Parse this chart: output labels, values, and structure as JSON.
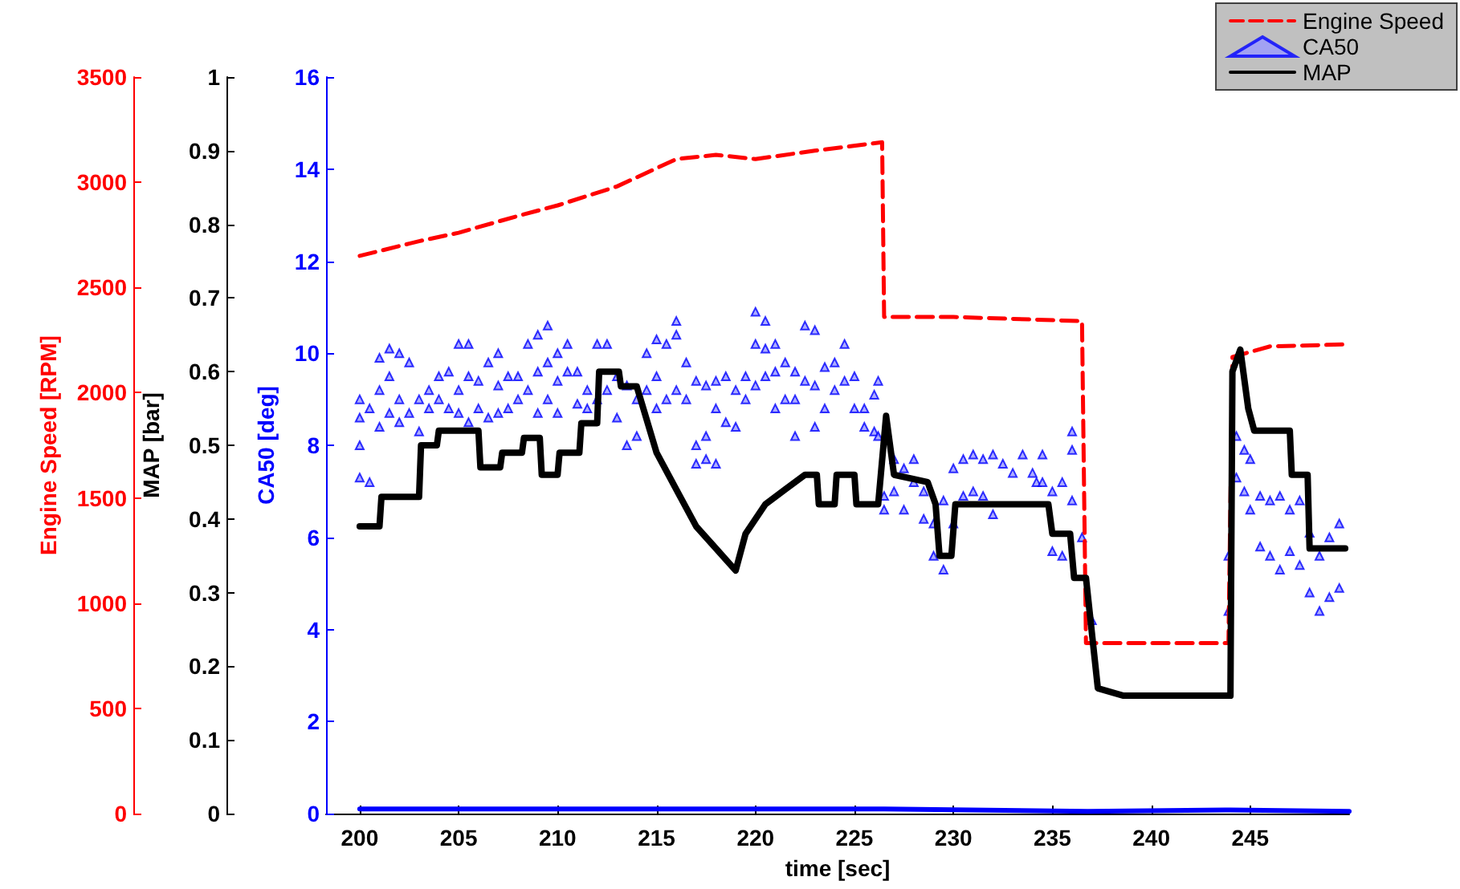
{
  "chart_data": {
    "type": "line",
    "xlabel": "time [sec]",
    "ylabel": "CA50 [deg]",
    "y2label": "MAP [bar]",
    "y3label": "Engine Speed [RPM]",
    "xlim": [
      198.3,
      250
    ],
    "xticks": [
      200,
      205,
      210,
      215,
      220,
      225,
      230,
      235,
      240,
      245
    ],
    "ylim": [
      0,
      16
    ],
    "yticks": [
      0,
      2,
      4,
      6,
      8,
      10,
      12,
      14,
      16
    ],
    "y2lim": [
      0,
      1
    ],
    "y2ticks": [
      0,
      0.1,
      0.2,
      0.3,
      0.4,
      0.5,
      0.6,
      0.7,
      0.8,
      0.9,
      1
    ],
    "y3lim": [
      0,
      3500
    ],
    "y3ticks": [
      0,
      500,
      1000,
      1500,
      2000,
      2500,
      3000,
      3500
    ],
    "legend": "top right",
    "grid": false,
    "series": [
      {
        "name": "Engine Speed",
        "axis": "y3",
        "color": "#ff0000",
        "line_style": "dashed",
        "marker": "none",
        "x": [
          200,
          203,
          205,
          208,
          210,
          213,
          216,
          218,
          220,
          223,
          226.4,
          226.5,
          230,
          236.5,
          236.7,
          240,
          243.9,
          244.1,
          246,
          250
        ],
        "values": [
          2650,
          2720,
          2760,
          2840,
          2890,
          2980,
          3110,
          3130,
          3110,
          3150,
          3190,
          2360,
          2360,
          2340,
          810,
          810,
          810,
          2170,
          2220,
          2230
        ]
      },
      {
        "name": "CA50",
        "type": "scatter",
        "axis": "y",
        "color": "#0000ff",
        "marker": "triangle",
        "x": [
          200,
          200,
          200,
          200,
          200.5,
          200.5,
          201,
          201,
          201,
          201.5,
          201.5,
          201.5,
          202,
          202,
          202,
          202.5,
          202.5,
          203,
          203,
          203.5,
          203.5,
          204,
          204,
          204.5,
          204.5,
          205,
          205,
          205,
          205.5,
          205.5,
          205.5,
          206,
          206,
          206.5,
          206.5,
          207,
          207,
          207,
          207.5,
          207.5,
          208,
          208,
          208.5,
          208.5,
          209,
          209,
          209,
          209.5,
          209.5,
          209.5,
          210,
          210,
          210,
          210.5,
          210.5,
          211,
          211,
          211.5,
          211.5,
          212,
          212,
          212.5,
          212.5,
          213,
          213,
          213.5,
          213.5,
          214,
          214,
          214.5,
          214.5,
          215,
          215,
          215,
          215.5,
          215.5,
          216,
          216,
          216,
          216.5,
          216.5,
          217,
          217,
          217,
          217.5,
          217.5,
          217.5,
          218,
          218,
          218,
          218.5,
          218.5,
          219,
          219,
          219.5,
          219.5,
          220,
          220,
          220,
          220.5,
          220.5,
          220.5,
          221,
          221,
          221,
          221.5,
          221.5,
          222,
          222,
          222,
          222.5,
          222.5,
          223,
          223,
          223,
          223.5,
          223.5,
          224,
          224,
          224.5,
          224.5,
          225,
          225,
          225.5,
          225.5,
          226,
          226,
          226.2,
          226.2,
          226.5,
          226.5,
          227,
          227,
          227.5,
          227.5,
          228,
          228,
          228.5,
          228.5,
          229,
          229,
          229.5,
          229.5,
          230,
          230,
          230.5,
          230.5,
          231,
          231,
          231.5,
          231.5,
          232,
          232,
          232.5,
          233,
          233.5,
          234,
          234.2,
          234.5,
          234.5,
          235,
          235,
          235.5,
          235.5,
          236,
          236,
          236,
          236.5,
          237,
          243.9,
          243.9,
          244.3,
          244.3,
          244.7,
          244.7,
          245,
          245,
          245.5,
          245.5,
          246,
          246,
          246.5,
          246.5,
          247,
          247,
          247.5,
          247.5,
          248,
          248,
          248.5,
          248.5,
          249,
          249,
          249.5,
          249.5
        ],
        "values": [
          9.0,
          8.0,
          7.3,
          8.6,
          7.2,
          8.8,
          8.4,
          9.9,
          9.2,
          10.1,
          9.5,
          8.7,
          10.0,
          9.0,
          8.5,
          9.8,
          8.7,
          9.0,
          8.3,
          9.2,
          8.8,
          9.5,
          9.0,
          9.6,
          8.8,
          10.2,
          9.2,
          8.7,
          10.2,
          9.5,
          8.5,
          9.4,
          8.8,
          9.8,
          8.6,
          10.0,
          9.3,
          8.7,
          9.5,
          8.8,
          9.5,
          9.0,
          10.2,
          9.2,
          10.4,
          9.6,
          8.7,
          10.6,
          9.8,
          9.0,
          10.0,
          9.4,
          8.7,
          10.2,
          9.6,
          9.6,
          8.9,
          9.2,
          8.8,
          10.2,
          9.0,
          10.2,
          9.2,
          9.5,
          8.6,
          9.3,
          8.0,
          9.0,
          8.2,
          10.0,
          9.2,
          10.3,
          9.5,
          8.8,
          10.2,
          9.0,
          10.7,
          10.4,
          9.2,
          9.8,
          9.0,
          9.4,
          8.0,
          7.6,
          9.3,
          8.2,
          7.7,
          9.4,
          8.8,
          7.6,
          9.5,
          8.5,
          9.2,
          8.4,
          9.5,
          9.0,
          10.9,
          10.2,
          9.3,
          10.7,
          10.1,
          9.5,
          10.2,
          9.6,
          8.8,
          9.8,
          9.0,
          9.6,
          9.0,
          8.2,
          10.6,
          9.4,
          10.5,
          9.3,
          8.4,
          9.7,
          8.8,
          9.8,
          9.2,
          10.2,
          9.4,
          9.5,
          8.8,
          8.8,
          8.4,
          9.1,
          8.3,
          9.4,
          8.2,
          6.6,
          6.9,
          7.7,
          7.0,
          7.5,
          6.6,
          7.7,
          7.2,
          7.0,
          6.4,
          6.3,
          5.6,
          5.3,
          6.8,
          7.5,
          6.3,
          7.7,
          6.9,
          7.8,
          7.0,
          7.7,
          6.9,
          7.8,
          6.5,
          7.6,
          7.4,
          7.8,
          7.4,
          7.2,
          7.8,
          7.2,
          7.0,
          5.7,
          7.2,
          5.6,
          7.9,
          8.3,
          6.8,
          6.0,
          4.2,
          4.4,
          5.6,
          8.2,
          7.3,
          7.9,
          7.0,
          7.7,
          6.6,
          6.9,
          5.8,
          6.8,
          5.6,
          6.9,
          5.3,
          6.6,
          5.7,
          6.8,
          5.4,
          6.1,
          4.8,
          5.6,
          4.4,
          6.0,
          4.7,
          6.3,
          4.9
        ]
      },
      {
        "name": "MAP",
        "axis": "y2",
        "color": "#000000",
        "line_style": "solid",
        "marker": "none",
        "x": [
          200,
          201,
          201.1,
          203,
          203.1,
          203.9,
          204,
          206,
          206.1,
          207.1,
          207.2,
          208.2,
          208.3,
          209.1,
          209.2,
          210,
          210.1,
          211.1,
          211.2,
          212,
          212.1,
          213.1,
          213.2,
          214,
          215,
          216,
          217,
          218,
          219,
          219.5,
          220.5,
          221.5,
          222.5,
          223.1,
          223.2,
          224,
          224.1,
          225,
          225.1,
          226.2,
          226.6,
          227,
          228.7,
          229.1,
          229.3,
          229.9,
          230.1,
          234.8,
          235,
          235.9,
          236.1,
          236.7,
          237.3,
          238.6,
          244,
          244.1,
          244.5,
          244.9,
          245.2,
          247,
          247.1,
          247.9,
          248,
          249.8
        ],
        "values": [
          0.39,
          0.39,
          0.43,
          0.43,
          0.5,
          0.5,
          0.52,
          0.52,
          0.47,
          0.47,
          0.49,
          0.49,
          0.51,
          0.51,
          0.46,
          0.46,
          0.49,
          0.49,
          0.53,
          0.53,
          0.6,
          0.6,
          0.58,
          0.58,
          0.49,
          0.44,
          0.39,
          0.36,
          0.33,
          0.38,
          0.42,
          0.44,
          0.46,
          0.46,
          0.42,
          0.42,
          0.46,
          0.46,
          0.42,
          0.42,
          0.54,
          0.46,
          0.45,
          0.42,
          0.35,
          0.35,
          0.42,
          0.42,
          0.38,
          0.38,
          0.32,
          0.32,
          0.17,
          0.16,
          0.16,
          0.6,
          0.63,
          0.55,
          0.52,
          0.52,
          0.46,
          0.46,
          0.36,
          0.36
        ]
      },
      {
        "axis": "y",
        "color": "#0000ff",
        "line_style": "solid",
        "marker": "none",
        "x": [
          200,
          226.5,
          236.8,
          244,
          250
        ],
        "values": [
          0.1,
          0.1,
          0.05,
          0.08,
          0.05
        ]
      }
    ]
  }
}
